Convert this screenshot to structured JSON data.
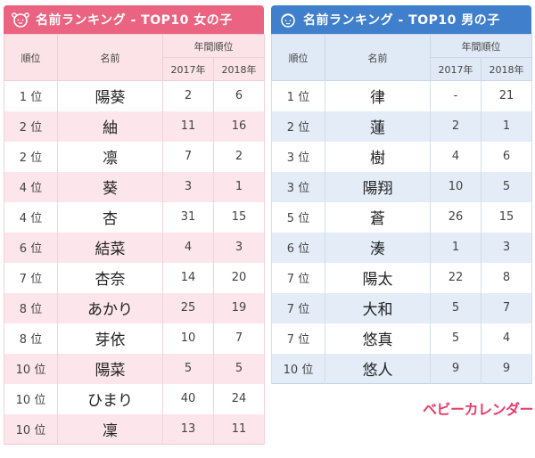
{
  "girl": {
    "title": "名前ランキング - TOP10 女の子",
    "headers": {
      "rank": "順位",
      "name": "名前",
      "annual": "年間順位",
      "y2017": "2017年",
      "y2018": "2018年"
    },
    "rows": [
      {
        "rank": "1 位",
        "name": "陽葵",
        "y2017": "2",
        "y2018": "6"
      },
      {
        "rank": "2 位",
        "name": "紬",
        "y2017": "11",
        "y2018": "16"
      },
      {
        "rank": "2 位",
        "name": "凛",
        "y2017": "7",
        "y2018": "2"
      },
      {
        "rank": "4 位",
        "name": "葵",
        "y2017": "3",
        "y2018": "1"
      },
      {
        "rank": "4 位",
        "name": "杏",
        "y2017": "31",
        "y2018": "15"
      },
      {
        "rank": "6 位",
        "name": "結菜",
        "y2017": "4",
        "y2018": "3"
      },
      {
        "rank": "7 位",
        "name": "杏奈",
        "y2017": "14",
        "y2018": "20"
      },
      {
        "rank": "8 位",
        "name": "あかり",
        "y2017": "25",
        "y2018": "19"
      },
      {
        "rank": "8 位",
        "name": "芽依",
        "y2017": "10",
        "y2018": "7"
      },
      {
        "rank": "10 位",
        "name": "陽菜",
        "y2017": "5",
        "y2018": "5"
      },
      {
        "rank": "10 位",
        "name": "ひまり",
        "y2017": "40",
        "y2018": "24"
      },
      {
        "rank": "10 位",
        "name": "凜",
        "y2017": "13",
        "y2018": "11"
      }
    ]
  },
  "boy": {
    "title": "名前ランキング - TOP10 男の子",
    "headers": {
      "rank": "順位",
      "name": "名前",
      "annual": "年間順位",
      "y2017": "2017年",
      "y2018": "2018年"
    },
    "rows": [
      {
        "rank": "1 位",
        "name": "律",
        "y2017": "-",
        "y2018": "21"
      },
      {
        "rank": "2 位",
        "name": "蓮",
        "y2017": "2",
        "y2018": "1"
      },
      {
        "rank": "3 位",
        "name": "樹",
        "y2017": "4",
        "y2018": "6"
      },
      {
        "rank": "3 位",
        "name": "陽翔",
        "y2017": "10",
        "y2018": "5"
      },
      {
        "rank": "5 位",
        "name": "蒼",
        "y2017": "26",
        "y2018": "15"
      },
      {
        "rank": "6 位",
        "name": "湊",
        "y2017": "1",
        "y2018": "3"
      },
      {
        "rank": "7 位",
        "name": "陽太",
        "y2017": "22",
        "y2018": "8"
      },
      {
        "rank": "7 位",
        "name": "大和",
        "y2017": "5",
        "y2018": "7"
      },
      {
        "rank": "7 位",
        "name": "悠真",
        "y2017": "5",
        "y2018": "4"
      },
      {
        "rank": "10 位",
        "name": "悠人",
        "y2017": "9",
        "y2018": "9"
      }
    ]
  },
  "brand": "ベビーカレンダー",
  "colors": {
    "girl_accent": "#ea6381",
    "boy_accent": "#3f7fcb",
    "brand": "#e73c6a"
  },
  "icons": {
    "girl": "girl-face-icon",
    "boy": "boy-face-icon"
  }
}
